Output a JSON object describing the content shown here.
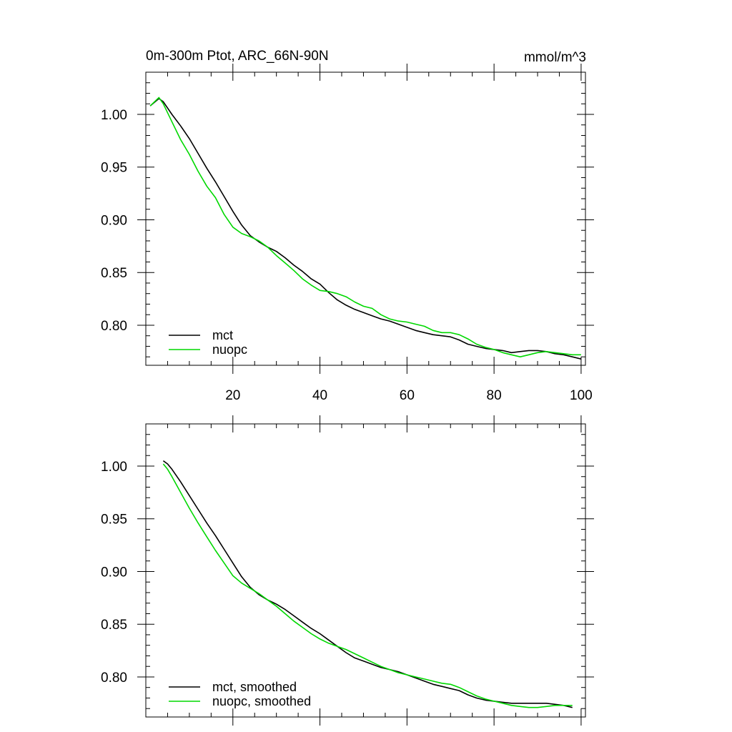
{
  "chart_data": [
    {
      "type": "line",
      "title": "0m-300m Ptot, ARC_66N-90N",
      "subtitle_right": "mmol/m^3",
      "xlim": [
        0,
        101
      ],
      "ylim": [
        0.762,
        1.04
      ],
      "x_ticks": [
        20,
        40,
        60,
        80,
        100
      ],
      "x_tick_labels": [
        "20",
        "40",
        "60",
        "80",
        "100"
      ],
      "y_ticks": [
        0.8,
        0.85,
        0.9,
        0.95,
        1.0
      ],
      "y_tick_labels": [
        "0.80",
        "0.85",
        "0.90",
        "0.95",
        "1.00"
      ],
      "legend_position": "bottom-left",
      "series": [
        {
          "name": "mct",
          "color": "#000000",
          "x": [
            1,
            3,
            4,
            6,
            8,
            10,
            12,
            14,
            16,
            18,
            20,
            22,
            24,
            26,
            28,
            30,
            32,
            34,
            36,
            38,
            40,
            42,
            44,
            46,
            48,
            50,
            52,
            54,
            56,
            58,
            60,
            62,
            64,
            66,
            68,
            70,
            72,
            74,
            76,
            78,
            80,
            82,
            84,
            86,
            88,
            90,
            92,
            94,
            96,
            98,
            100
          ],
          "y": [
            1.008,
            1.015,
            1.012,
            1.0,
            0.989,
            0.977,
            0.963,
            0.949,
            0.936,
            0.922,
            0.908,
            0.895,
            0.885,
            0.879,
            0.874,
            0.87,
            0.864,
            0.857,
            0.851,
            0.844,
            0.839,
            0.831,
            0.824,
            0.819,
            0.815,
            0.812,
            0.809,
            0.806,
            0.804,
            0.801,
            0.798,
            0.795,
            0.793,
            0.791,
            0.79,
            0.789,
            0.786,
            0.782,
            0.78,
            0.778,
            0.777,
            0.776,
            0.774,
            0.775,
            0.776,
            0.776,
            0.775,
            0.773,
            0.772,
            0.77,
            0.768
          ]
        },
        {
          "name": "nuopc",
          "color": "#00d800",
          "x": [
            1,
            3,
            4,
            6,
            8,
            10,
            12,
            14,
            16,
            18,
            20,
            22,
            24,
            26,
            28,
            30,
            32,
            34,
            36,
            38,
            40,
            42,
            44,
            46,
            48,
            50,
            52,
            54,
            56,
            58,
            60,
            62,
            64,
            66,
            68,
            70,
            72,
            74,
            76,
            78,
            80,
            82,
            84,
            86,
            88,
            90,
            92,
            94,
            96,
            98,
            100
          ],
          "y": [
            1.008,
            1.016,
            1.01,
            0.993,
            0.976,
            0.962,
            0.946,
            0.932,
            0.921,
            0.905,
            0.893,
            0.887,
            0.884,
            0.88,
            0.874,
            0.866,
            0.859,
            0.852,
            0.844,
            0.838,
            0.833,
            0.832,
            0.83,
            0.827,
            0.822,
            0.818,
            0.816,
            0.81,
            0.806,
            0.804,
            0.803,
            0.801,
            0.799,
            0.795,
            0.793,
            0.793,
            0.791,
            0.787,
            0.782,
            0.779,
            0.777,
            0.774,
            0.772,
            0.77,
            0.772,
            0.774,
            0.775,
            0.774,
            0.773,
            0.772,
            0.772
          ]
        }
      ]
    },
    {
      "type": "line",
      "xlim": [
        0,
        101
      ],
      "ylim": [
        0.762,
        1.04
      ],
      "x_ticks": [
        20,
        40,
        60,
        80,
        100
      ],
      "y_ticks": [
        0.8,
        0.85,
        0.9,
        0.95,
        1.0
      ],
      "y_tick_labels": [
        "0.80",
        "0.85",
        "0.90",
        "0.95",
        "1.00"
      ],
      "legend_position": "bottom-left",
      "series": [
        {
          "name": "mct, smoothed",
          "color": "#000000",
          "x": [
            4,
            5,
            6,
            8,
            10,
            12,
            14,
            16,
            18,
            20,
            22,
            24,
            26,
            28,
            30,
            32,
            34,
            36,
            38,
            40,
            42,
            44,
            46,
            48,
            50,
            52,
            54,
            56,
            58,
            60,
            62,
            64,
            66,
            68,
            70,
            72,
            74,
            76,
            78,
            80,
            82,
            84,
            86,
            88,
            90,
            92,
            94,
            96,
            98
          ],
          "y": [
            1.005,
            1.002,
            0.997,
            0.985,
            0.972,
            0.959,
            0.946,
            0.934,
            0.921,
            0.908,
            0.895,
            0.885,
            0.878,
            0.873,
            0.869,
            0.864,
            0.858,
            0.852,
            0.846,
            0.841,
            0.835,
            0.829,
            0.823,
            0.818,
            0.815,
            0.812,
            0.809,
            0.807,
            0.805,
            0.802,
            0.799,
            0.796,
            0.793,
            0.791,
            0.789,
            0.787,
            0.783,
            0.78,
            0.778,
            0.777,
            0.776,
            0.775,
            0.775,
            0.775,
            0.775,
            0.775,
            0.774,
            0.773,
            0.771
          ]
        },
        {
          "name": "nuopc, smoothed",
          "color": "#00d800",
          "x": [
            4,
            5,
            6,
            8,
            10,
            12,
            14,
            16,
            18,
            20,
            22,
            24,
            26,
            28,
            30,
            32,
            34,
            36,
            38,
            40,
            42,
            44,
            46,
            48,
            50,
            52,
            54,
            56,
            58,
            60,
            62,
            64,
            66,
            68,
            70,
            72,
            74,
            76,
            78,
            80,
            82,
            84,
            86,
            88,
            90,
            92,
            94,
            96,
            98
          ],
          "y": [
            1.002,
            0.997,
            0.99,
            0.975,
            0.96,
            0.946,
            0.933,
            0.92,
            0.908,
            0.896,
            0.889,
            0.884,
            0.879,
            0.873,
            0.867,
            0.86,
            0.853,
            0.847,
            0.841,
            0.836,
            0.832,
            0.829,
            0.826,
            0.822,
            0.818,
            0.814,
            0.81,
            0.807,
            0.804,
            0.802,
            0.8,
            0.798,
            0.796,
            0.794,
            0.793,
            0.79,
            0.786,
            0.782,
            0.779,
            0.777,
            0.775,
            0.773,
            0.772,
            0.771,
            0.771,
            0.772,
            0.773,
            0.773,
            0.773
          ]
        }
      ]
    }
  ]
}
